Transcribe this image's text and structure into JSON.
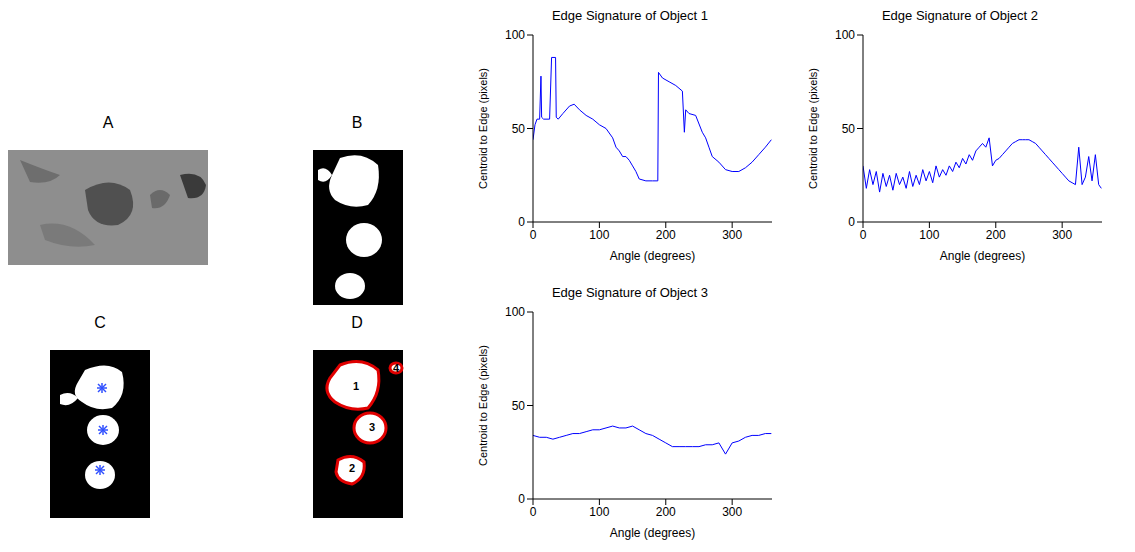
{
  "images": [
    {
      "label": "A"
    },
    {
      "label": "B"
    },
    {
      "label": "C"
    },
    {
      "label": "D",
      "object_labels": [
        "1",
        "2",
        "3",
        "4"
      ]
    }
  ],
  "chart_data": [
    {
      "type": "line",
      "title": "Edge Signature of Object 1",
      "x_label": "Angle (degrees)",
      "y_label": "Centroid to Edge (pixels)",
      "x": [
        0,
        3,
        6,
        10,
        12,
        13,
        16,
        25,
        28,
        34,
        35,
        38,
        45,
        55,
        62,
        70,
        80,
        90,
        100,
        110,
        120,
        125,
        130,
        135,
        140,
        145,
        150,
        155,
        160,
        170,
        180,
        188,
        189,
        195,
        205,
        215,
        225,
        228,
        230,
        235,
        245,
        255,
        260,
        265,
        270,
        280,
        290,
        300,
        310,
        320,
        330,
        340,
        350,
        359
      ],
      "values": [
        44,
        52,
        55,
        55,
        78,
        56,
        55,
        55,
        88,
        88,
        56,
        55,
        58,
        62,
        63,
        60,
        57,
        55,
        52,
        50,
        45,
        40,
        38,
        35,
        35,
        33,
        30,
        27,
        23,
        22,
        22,
        22,
        80,
        77,
        75,
        73,
        70,
        48,
        60,
        58,
        57,
        48,
        45,
        40,
        35,
        32,
        28,
        27,
        27,
        29,
        32,
        36,
        40,
        44
      ],
      "color": "#0000ff",
      "xlim": [
        0,
        360
      ],
      "ylim": [
        0,
        100
      ],
      "xticks": [
        0,
        100,
        200,
        300
      ],
      "yticks": [
        0,
        50,
        100
      ],
      "grid": false
    },
    {
      "type": "line",
      "title": "Edge Signature of Object 2",
      "x_label": "Angle (degrees)",
      "y_label": "Centroid to Edge (pixels)",
      "x": [
        0,
        5,
        10,
        15,
        20,
        25,
        30,
        35,
        40,
        45,
        50,
        55,
        60,
        65,
        70,
        75,
        80,
        85,
        90,
        95,
        100,
        105,
        110,
        115,
        120,
        125,
        130,
        135,
        140,
        145,
        150,
        155,
        160,
        165,
        170,
        175,
        180,
        185,
        190,
        195,
        200,
        205,
        210,
        215,
        220,
        225,
        230,
        235,
        240,
        245,
        250,
        255,
        260,
        265,
        270,
        275,
        280,
        285,
        290,
        295,
        300,
        305,
        310,
        315,
        320,
        325,
        330,
        335,
        340,
        345,
        350,
        355,
        359
      ],
      "values": [
        30,
        18,
        28,
        20,
        27,
        16,
        26,
        19,
        25,
        17,
        26,
        20,
        24,
        18,
        27,
        19,
        25,
        20,
        28,
        22,
        27,
        21,
        30,
        24,
        28,
        25,
        30,
        27,
        32,
        29,
        34,
        31,
        36,
        33,
        38,
        40,
        42,
        40,
        45,
        30,
        33,
        34,
        36,
        38,
        40,
        42,
        43,
        44,
        44,
        44,
        44,
        43,
        42,
        40,
        38,
        36,
        34,
        32,
        30,
        28,
        26,
        24,
        22,
        21,
        20,
        40,
        20,
        24,
        35,
        22,
        36,
        20,
        18
      ],
      "color": "#0000ff",
      "xlim": [
        0,
        360
      ],
      "ylim": [
        0,
        100
      ],
      "xticks": [
        0,
        100,
        200,
        300
      ],
      "yticks": [
        0,
        50,
        100
      ],
      "grid": false
    },
    {
      "type": "line",
      "title": "Edge Signature of Object 3",
      "x_label": "Angle (degrees)",
      "y_label": "Centroid to Edge (pixels)",
      "x": [
        0,
        10,
        20,
        30,
        40,
        50,
        60,
        70,
        80,
        90,
        100,
        110,
        120,
        130,
        140,
        150,
        160,
        170,
        180,
        190,
        200,
        210,
        220,
        230,
        240,
        250,
        260,
        270,
        280,
        290,
        300,
        310,
        320,
        330,
        340,
        350,
        359
      ],
      "values": [
        34,
        33,
        33,
        32,
        33,
        34,
        35,
        35,
        36,
        37,
        37,
        38,
        39,
        38,
        38,
        39,
        37,
        35,
        34,
        32,
        30,
        28,
        28,
        28,
        28,
        28,
        29,
        29,
        30,
        24,
        30,
        31,
        33,
        34,
        34,
        35,
        35
      ],
      "color": "#0000ff",
      "xlim": [
        0,
        360
      ],
      "ylim": [
        0,
        100
      ],
      "xticks": [
        0,
        100,
        200,
        300
      ],
      "yticks": [
        0,
        50,
        100
      ],
      "grid": false
    }
  ]
}
